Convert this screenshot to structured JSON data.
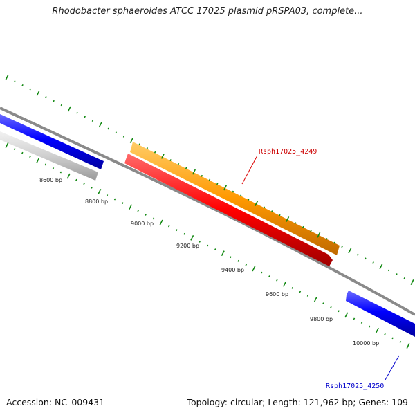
{
  "title": "Rhodobacter sphaeroides ATCC 17025 plasmid pRSPA03, complete...",
  "footer": {
    "accession": "Accession: NC_009431",
    "topology": "Topology: circular; Length: 121,962 bp; Genes: 109"
  },
  "genes": [
    {
      "name": "Rsph17025_4249",
      "color": "#cc0000"
    },
    {
      "name": "Rsph17025_4250",
      "color": "#0000cc"
    }
  ],
  "bp_labels": [
    "8600 bp",
    "8800 bp",
    "9000 bp",
    "9200 bp",
    "9400 bp",
    "9600 bp",
    "9800 bp",
    "10000 bp"
  ],
  "colors": {
    "backbone": "#888888",
    "tick": "#118811",
    "orange_feature": "#ff9900",
    "red_feature": "#ff0000",
    "blue_feature": "#0000ff",
    "grey_feature": "#cccccc"
  }
}
